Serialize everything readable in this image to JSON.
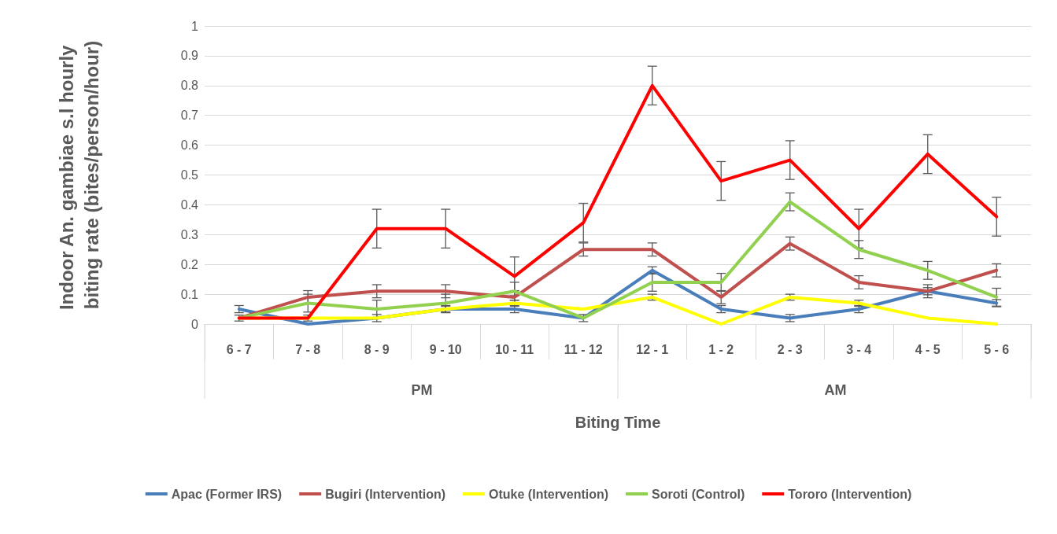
{
  "chart_data": {
    "type": "line",
    "xlabel": "Biting Time",
    "ylabel": "Indoor An. gambiae s.l hourly biting rate (bites/person/hour)",
    "categories": [
      "6 - 7",
      "7 - 8",
      "8 - 9",
      "9 - 10",
      "10 - 11",
      "11 - 12",
      "12 - 1",
      "1 - 2",
      "2 - 3",
      "3 - 4",
      "4 - 5",
      "5 - 6"
    ],
    "annotations": [
      "PM",
      "AM"
    ],
    "series": [
      {
        "name": "Apac (Former IRS)",
        "color": "#4a7ebb",
        "values": [
          0.05,
          0,
          0.02,
          0.05,
          0.05,
          0.02,
          0.18,
          0.05,
          0.02,
          0.05,
          0.11,
          0.07
        ],
        "errors": [
          0.012,
          null,
          0.012,
          0.012,
          0.012,
          0.012,
          0.012,
          0.012,
          0.012,
          0.012,
          0.012,
          0.012
        ]
      },
      {
        "name": "Bugiri (Intervention)",
        "color": "#c0504d",
        "values": [
          0.02,
          0.09,
          0.11,
          0.11,
          0.09,
          0.25,
          0.25,
          0.09,
          0.27,
          0.14,
          0.11,
          0.18
        ],
        "errors": [
          null,
          0.022,
          0.022,
          0.022,
          0.022,
          0.022,
          0.022,
          0.022,
          0.022,
          0.022,
          0.022,
          0.022
        ]
      },
      {
        "name": "Otuke (Intervention)",
        "color": "#ffff00",
        "values": [
          0.02,
          0.02,
          0.02,
          0.05,
          0.07,
          0.05,
          0.09,
          0,
          0.09,
          0.07,
          0.02,
          0
        ],
        "errors": [
          0.01,
          0.01,
          null,
          0.01,
          0.01,
          null,
          0.01,
          null,
          0.01,
          0.01,
          null,
          null
        ]
      },
      {
        "name": "Soroti (Control)",
        "color": "#92d050",
        "values": [
          0.02,
          0.07,
          0.05,
          0.07,
          0.11,
          0.02,
          0.14,
          0.14,
          0.41,
          0.25,
          0.18,
          0.09
        ],
        "errors": [
          null,
          0.03,
          0.03,
          0.03,
          0.03,
          null,
          0.03,
          0.03,
          0.03,
          0.03,
          0.03,
          0.03
        ]
      },
      {
        "name": "Tororo (Intervention)",
        "color": "#ff0000",
        "values": [
          0.02,
          0.02,
          0.32,
          0.32,
          0.16,
          0.34,
          0.8,
          0.48,
          0.55,
          0.32,
          0.57,
          0.36
        ],
        "errors": [
          null,
          null,
          0.065,
          0.065,
          0.065,
          0.065,
          0.065,
          0.065,
          0.065,
          0.065,
          0.065,
          0.065
        ]
      }
    ],
    "ylim": [
      0,
      1
    ],
    "yticks": [
      0,
      0.1,
      0.2,
      0.3,
      0.4,
      0.5,
      0.6,
      0.7,
      0.8,
      0.9,
      1
    ],
    "grid": "y",
    "legend": "bottom",
    "marker": "none",
    "line_style": "solid"
  }
}
